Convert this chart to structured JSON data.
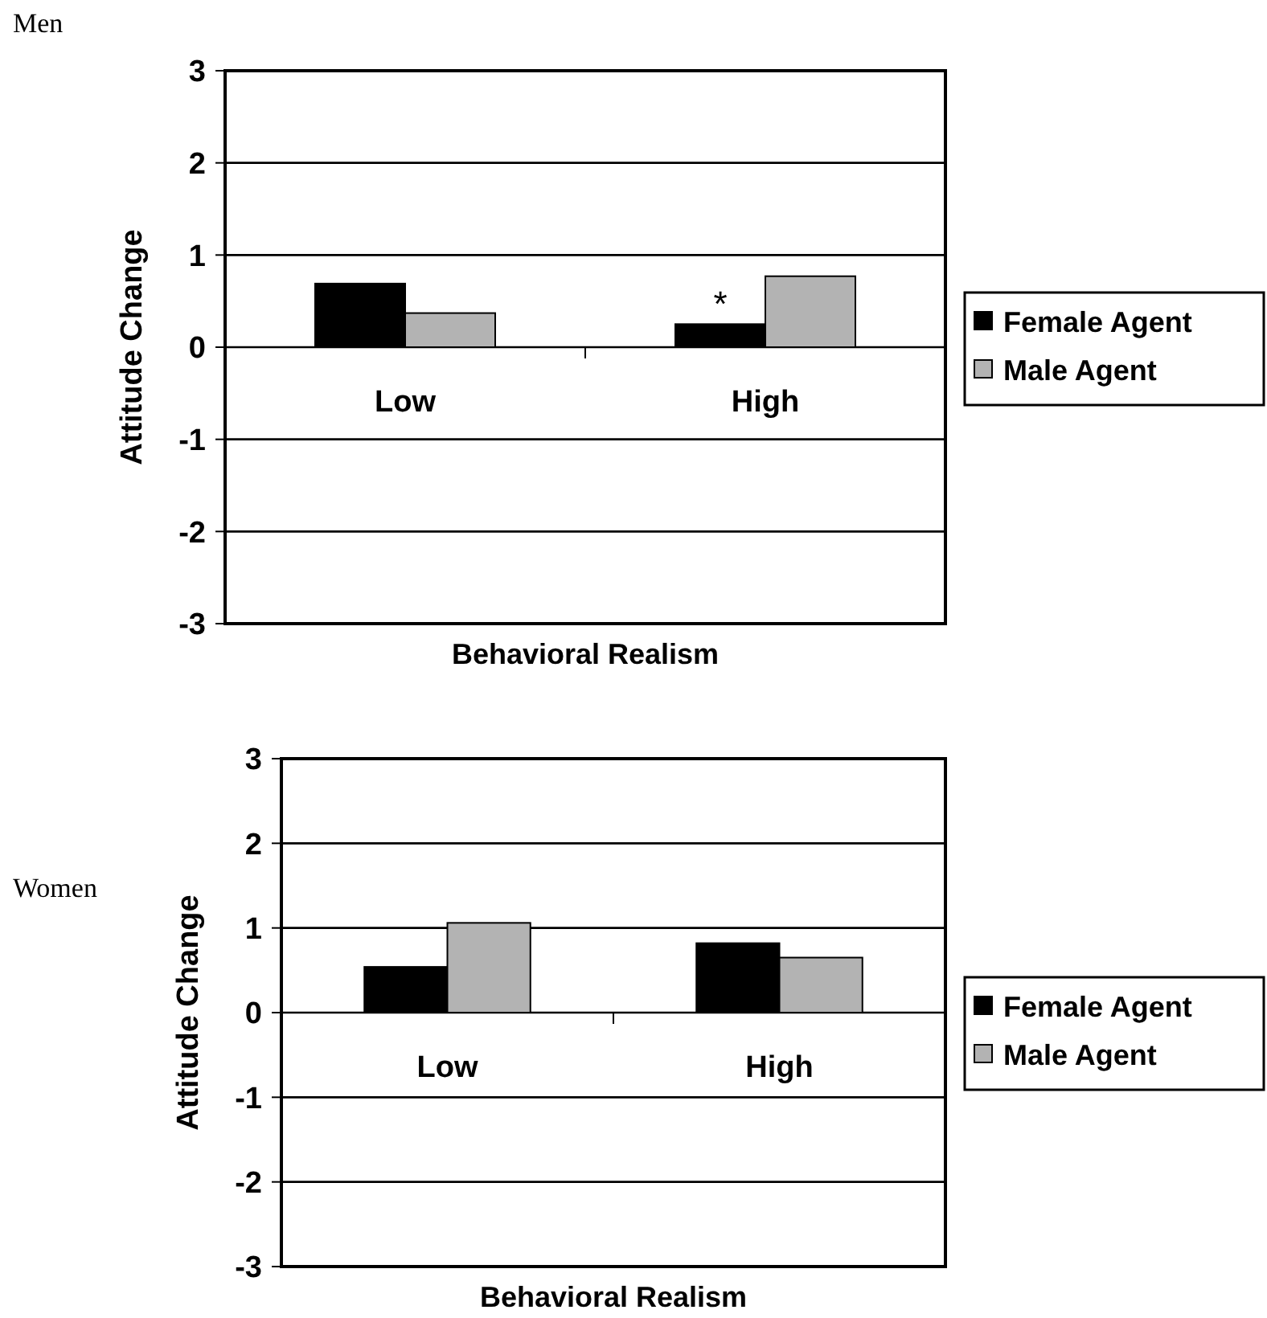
{
  "chart_data": [
    {
      "type": "bar",
      "title": "Men",
      "xlabel": "Behavioral Realism",
      "ylabel": "Attitude Change",
      "categories": [
        "Low",
        "High"
      ],
      "series": [
        {
          "name": "Female Agent",
          "color": "#000000",
          "values": [
            0.69,
            0.25
          ]
        },
        {
          "name": "Male Agent",
          "color": "#b3b3b3",
          "values": [
            0.37,
            0.77
          ]
        }
      ],
      "ylim": [
        -3,
        3
      ],
      "yticks": [
        -3,
        -2,
        -1,
        0,
        1,
        2,
        3
      ],
      "grid": "y",
      "legend": "right",
      "annotations": [
        {
          "text": "*",
          "x": "High",
          "y": 0.25
        }
      ]
    },
    {
      "type": "bar",
      "title": "Women",
      "xlabel": "Behavioral Realism",
      "ylabel": "Attitude Change",
      "categories": [
        "Low",
        "High"
      ],
      "series": [
        {
          "name": "Female Agent",
          "color": "#000000",
          "values": [
            0.54,
            0.82
          ]
        },
        {
          "name": "Male Agent",
          "color": "#b3b3b3",
          "values": [
            1.06,
            0.65
          ]
        }
      ],
      "ylim": [
        -3,
        3
      ],
      "yticks": [
        -3,
        -2,
        -1,
        0,
        1,
        2,
        3
      ],
      "grid": "y",
      "legend": "right"
    }
  ]
}
